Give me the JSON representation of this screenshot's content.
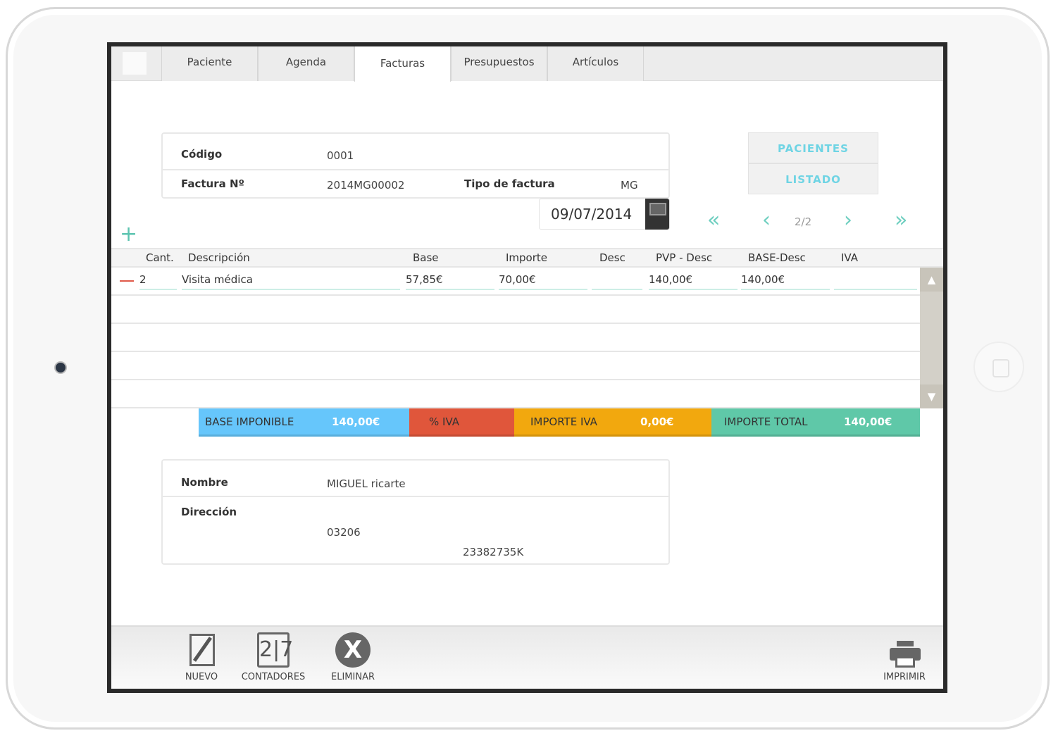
{
  "tabs": [
    {
      "label": "Paciente"
    },
    {
      "label": "Agenda"
    },
    {
      "label": "Facturas",
      "active": true
    },
    {
      "label": "Presupuestos"
    },
    {
      "label": "Artículos"
    }
  ],
  "invoice": {
    "codigo_label": "Código",
    "codigo": "0001",
    "factura_label": "Factura Nº",
    "factura": "2014MG00002",
    "tipo_label": "Tipo de factura",
    "tipo": "MG",
    "fecha": "09/07/2014"
  },
  "side_buttons": {
    "pacientes": "PACIENTES",
    "listado": "LISTADO"
  },
  "pager": {
    "text": "2/2"
  },
  "table": {
    "headers": [
      "Cant.",
      "Descripción",
      "Base",
      "Importe",
      "Desc",
      "PVP - Desc",
      "BASE-Desc",
      "IVA"
    ],
    "rows": [
      {
        "cant": "2",
        "descripcion": "Visita médica",
        "base": "57,85€",
        "importe": "70,00€",
        "desc": "",
        "pvp_desc": "140,00€",
        "base_desc": "140,00€",
        "iva": ""
      }
    ]
  },
  "totals": {
    "base_label": "BASE IMPONIBLE",
    "base": "140,00€",
    "iva_pct_label": "% IVA",
    "iva_pct": "",
    "importe_iva_label": "IMPORTE IVA",
    "importe_iva": "0,00€",
    "total_label": "IMPORTE TOTAL",
    "total": "140,00€",
    "colors": {
      "base": "#66c6fb",
      "iva_pct": "#e0563b",
      "importe_iva": "#f2a80e",
      "total": "#5fc8a8"
    }
  },
  "client": {
    "nombre_label": "Nombre",
    "nombre": "MIGUEL ricarte",
    "direccion_label": "Dirección",
    "cp": "03206",
    "nif": "23382735K"
  },
  "footer": {
    "nuevo": "NUEVO",
    "contadores": "CONTADORES",
    "eliminar": "ELIMINAR",
    "imprimir": "IMPRIMIR"
  }
}
